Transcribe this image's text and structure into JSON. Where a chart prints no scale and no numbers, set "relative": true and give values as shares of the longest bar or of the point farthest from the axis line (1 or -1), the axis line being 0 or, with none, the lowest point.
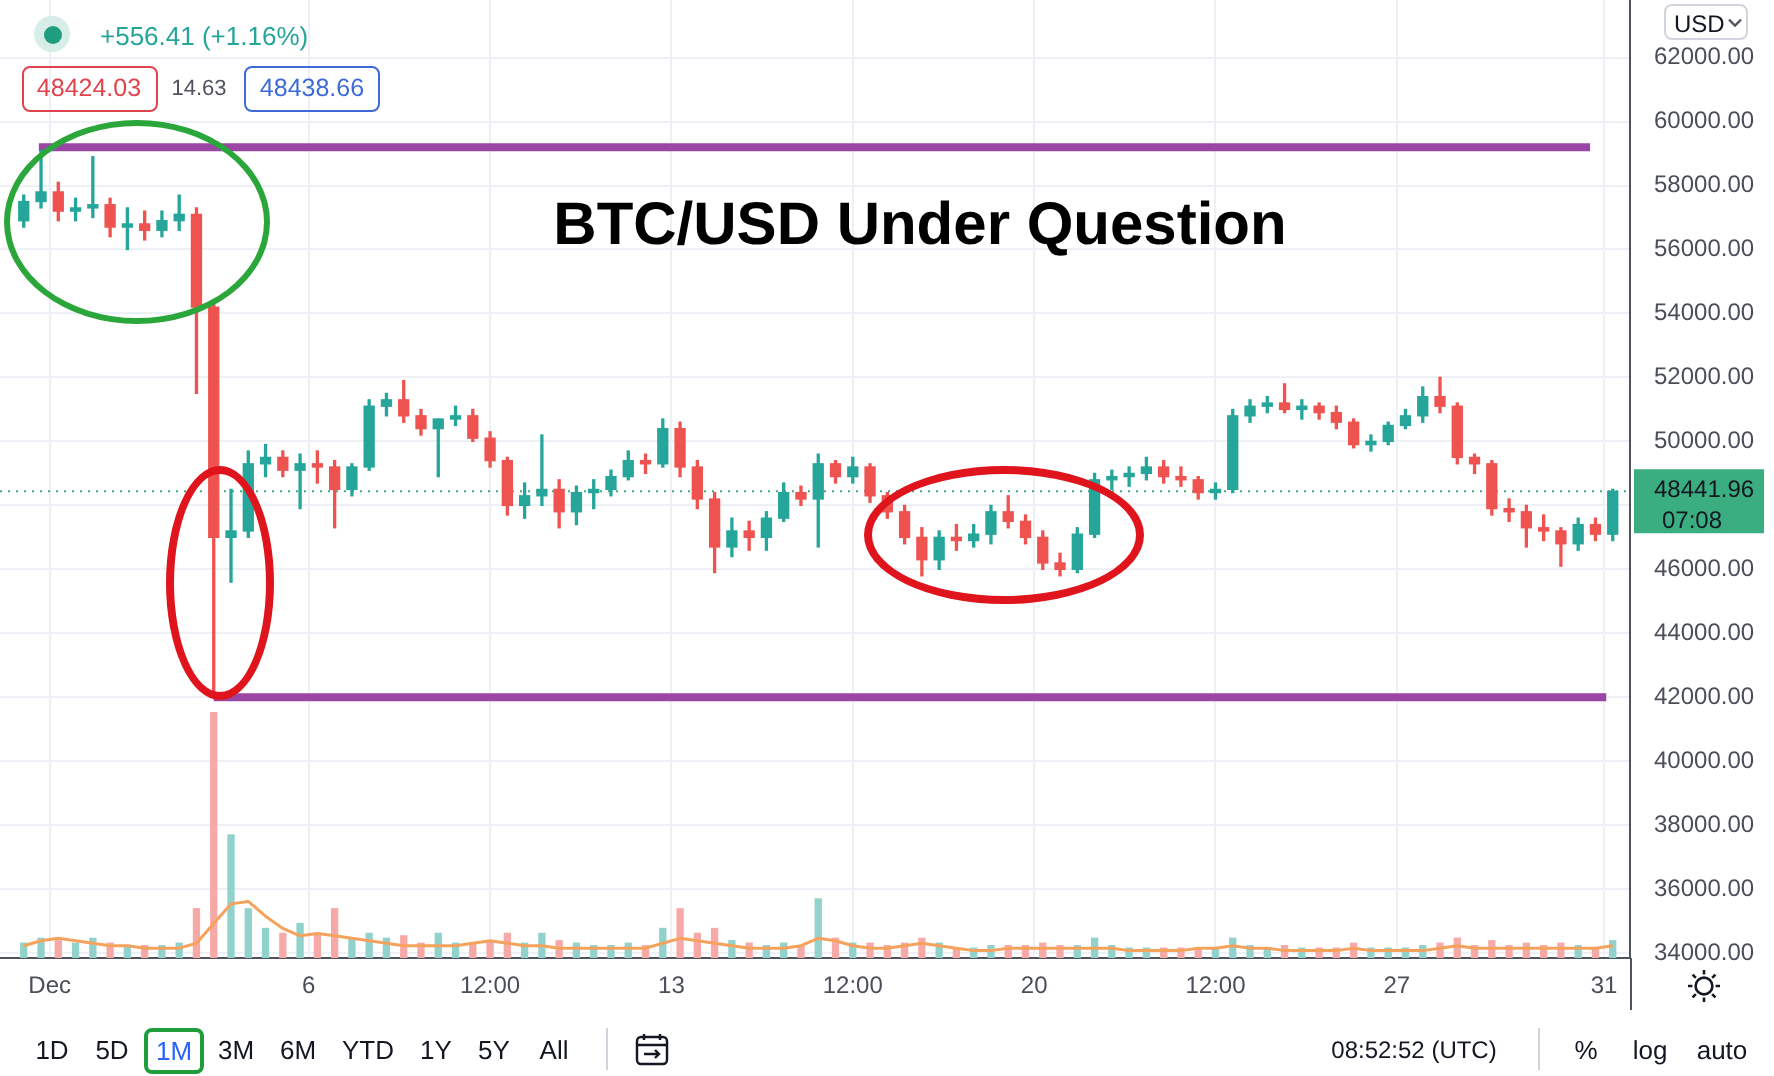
{
  "chart_data": [
    {
      "type": "candlestick",
      "title": "BTC/USD Under Question",
      "series": [
        {
          "x": [
            "--11-30T12:00",
            "--11-30T20:00",
            "--12-01T04:00",
            "--12-01T12:00",
            "--12-01T20:00",
            "--12-02T04:00",
            "--12-02T12:00",
            "--12-02T20:00",
            "--12-03T04:00",
            "--12-03T12:00",
            "--12-03T20:00",
            "--12-04T04:00",
            "--12-04T12:00",
            "--12-04T20:00",
            "--12-05T04:00",
            "--12-05T12:00",
            "--12-05T20:00",
            "--12-06T04:00",
            "--12-06T12:00",
            "--12-06T20:00",
            "--12-07T04:00",
            "--12-07T12:00",
            "--12-07T20:00",
            "--12-08T04:00",
            "--12-08T12:00",
            "--12-08T20:00",
            "--12-09T04:00",
            "--12-09T12:00",
            "--12-09T20:00",
            "--12-10T04:00",
            "--12-10T12:00",
            "--12-10T20:00",
            "--12-11T04:00",
            "--12-11T12:00",
            "--12-11T20:00",
            "--12-12T04:00",
            "--12-12T12:00",
            "--12-12T20:00",
            "--12-13T04:00",
            "--12-13T12:00",
            "--12-13T20:00",
            "--12-14T04:00",
            "--12-14T12:00",
            "--12-14T20:00",
            "--12-15T04:00",
            "--12-15T12:00",
            "--12-15T20:00",
            "--12-16T04:00",
            "--12-16T12:00",
            "--12-16T20:00",
            "--12-17T04:00",
            "--12-17T12:00",
            "--12-17T20:00",
            "--12-18T04:00",
            "--12-18T12:00",
            "--12-18T20:00",
            "--12-19T04:00",
            "--12-19T12:00",
            "--12-19T20:00",
            "--12-20T04:00",
            "--12-20T12:00",
            "--12-20T20:00",
            "--12-21T04:00",
            "--12-21T12:00",
            "--12-21T20:00",
            "--12-22T04:00",
            "--12-22T12:00",
            "--12-22T20:00",
            "--12-23T04:00",
            "--12-23T12:00",
            "--12-23T20:00",
            "--12-24T04:00",
            "--12-24T12:00",
            "--12-24T20:00",
            "--12-25T04:00",
            "--12-25T12:00",
            "--12-25T20:00",
            "--12-26T04:00",
            "--12-26T12:00",
            "--12-26T20:00",
            "--12-27T04:00",
            "--12-27T12:00",
            "--12-27T20:00",
            "--12-28T04:00",
            "--12-28T12:00",
            "--12-28T20:00",
            "--12-29T04:00",
            "--12-29T12:00",
            "--12-29T20:00",
            "--12-30T04:00",
            "--12-30T12:00",
            "--12-30T20:00",
            "--12-31T04:00"
          ],
          "ohlc": [
            [
              56900,
              57700,
              56700,
              57500
            ],
            [
              57500,
              59100,
              57300,
              57800
            ],
            [
              57800,
              58100,
              56900,
              57200
            ],
            [
              57200,
              57600,
              56900,
              57300
            ],
            [
              57300,
              58900,
              57000,
              57400
            ],
            [
              57400,
              57600,
              56400,
              56700
            ],
            [
              56700,
              57300,
              56000,
              56800
            ],
            [
              56800,
              57200,
              56300,
              56600
            ],
            [
              56600,
              57200,
              56400,
              56900
            ],
            [
              56900,
              57700,
              56600,
              57100
            ],
            [
              57100,
              57300,
              51500,
              54200
            ],
            [
              54200,
              54400,
              42000,
              47000
            ],
            [
              47000,
              48500,
              45600,
              47200
            ],
            [
              47200,
              49700,
              47000,
              49300
            ],
            [
              49300,
              49900,
              48900,
              49500
            ],
            [
              49500,
              49700,
              48900,
              49100
            ],
            [
              49100,
              49600,
              47900,
              49300
            ],
            [
              49300,
              49700,
              48700,
              49200
            ],
            [
              49200,
              49400,
              47300,
              48500
            ],
            [
              48500,
              49300,
              48300,
              49200
            ],
            [
              49200,
              51300,
              49100,
              51100
            ],
            [
              51100,
              51500,
              50800,
              51300
            ],
            [
              51300,
              51900,
              50600,
              50800
            ],
            [
              50800,
              51000,
              50200,
              50400
            ],
            [
              50400,
              50700,
              48900,
              50700
            ],
            [
              50700,
              51100,
              50500,
              50800
            ],
            [
              50800,
              51000,
              50000,
              50100
            ],
            [
              50100,
              50300,
              49200,
              49400
            ],
            [
              49400,
              49500,
              47700,
              48000
            ],
            [
              48000,
              48700,
              47600,
              48300
            ],
            [
              48300,
              50200,
              48000,
              48500
            ],
            [
              48500,
              48800,
              47300,
              47800
            ],
            [
              47800,
              48600,
              47400,
              48400
            ],
            [
              48400,
              48800,
              47900,
              48500
            ],
            [
              48500,
              49100,
              48300,
              48900
            ],
            [
              48900,
              49700,
              48800,
              49400
            ],
            [
              49400,
              49600,
              49000,
              49300
            ],
            [
              49300,
              50700,
              49200,
              50400
            ],
            [
              50400,
              50600,
              48900,
              49200
            ],
            [
              49200,
              49400,
              47900,
              48200
            ],
            [
              48200,
              48400,
              45900,
              46700
            ],
            [
              46700,
              47600,
              46400,
              47200
            ],
            [
              47200,
              47500,
              46600,
              47000
            ],
            [
              47000,
              47800,
              46600,
              47600
            ],
            [
              47600,
              48700,
              47500,
              48400
            ],
            [
              48400,
              48600,
              48000,
              48200
            ],
            [
              48200,
              49600,
              46700,
              49300
            ],
            [
              49300,
              49400,
              48700,
              48900
            ],
            [
              48900,
              49500,
              48700,
              49200
            ],
            [
              49200,
              49300,
              48100,
              48300
            ],
            [
              48300,
              48400,
              47600,
              47800
            ],
            [
              47800,
              48000,
              46800,
              47000
            ],
            [
              47000,
              47300,
              45800,
              46300
            ],
            [
              46300,
              47200,
              46000,
              47000
            ],
            [
              47000,
              47400,
              46600,
              46900
            ],
            [
              46900,
              47400,
              46700,
              47100
            ],
            [
              47100,
              48000,
              46800,
              47800
            ],
            [
              47800,
              48300,
              47300,
              47500
            ],
            [
              47500,
              47700,
              46800,
              47000
            ],
            [
              47000,
              47200,
              46000,
              46200
            ],
            [
              46200,
              46500,
              45800,
              46000
            ],
            [
              46000,
              47300,
              45900,
              47100
            ],
            [
              47100,
              49000,
              47000,
              48800
            ],
            [
              48800,
              49100,
              48500,
              48900
            ],
            [
              48900,
              49200,
              48600,
              49000
            ],
            [
              49000,
              49500,
              48800,
              49200
            ],
            [
              49200,
              49400,
              48700,
              48900
            ],
            [
              48900,
              49200,
              48600,
              48800
            ],
            [
              48800,
              48900,
              48200,
              48400
            ],
            [
              48400,
              48700,
              48200,
              48500
            ],
            [
              48500,
              51000,
              48400,
              50800
            ],
            [
              50800,
              51300,
              50600,
              51100
            ],
            [
              51100,
              51400,
              50900,
              51200
            ],
            [
              51200,
              51800,
              50900,
              51000
            ],
            [
              51000,
              51300,
              50700,
              51100
            ],
            [
              51100,
              51200,
              50700,
              50900
            ],
            [
              50900,
              51100,
              50400,
              50600
            ],
            [
              50600,
              50700,
              49800,
              49900
            ],
            [
              49900,
              50200,
              49700,
              50000
            ],
            [
              50000,
              50600,
              49900,
              50500
            ],
            [
              50500,
              51000,
              50400,
              50800
            ],
            [
              50800,
              51700,
              50600,
              51400
            ],
            [
              51400,
              52000,
              50900,
              51100
            ],
            [
              51100,
              51200,
              49300,
              49500
            ],
            [
              49500,
              49600,
              49000,
              49300
            ],
            [
              49300,
              49400,
              47700,
              47900
            ],
            [
              47900,
              48200,
              47500,
              47800
            ],
            [
              47800,
              48000,
              46700,
              47300
            ],
            [
              47300,
              47700,
              46900,
              47200
            ],
            [
              47200,
              47300,
              46100,
              46800
            ],
            [
              46800,
              47600,
              46600,
              47400
            ],
            [
              47400,
              47600,
              46900,
              47100
            ],
            [
              47100,
              48500,
              46900,
              48440
            ]
          ],
          "colors": [
            "#26a69a",
            "#26a69a",
            "#ef5350",
            "#26a69a",
            "#26a69a",
            "#ef5350",
            "#26a69a",
            "#ef5350",
            "#26a69a",
            "#26a69a",
            "#ef5350",
            "#ef5350",
            "#26a69a",
            "#26a69a",
            "#26a69a",
            "#ef5350",
            "#26a69a",
            "#ef5350",
            "#ef5350",
            "#26a69a",
            "#26a69a",
            "#26a69a",
            "#ef5350",
            "#ef5350",
            "#26a69a",
            "#26a69a",
            "#ef5350",
            "#ef5350",
            "#ef5350",
            "#26a69a",
            "#26a69a",
            "#ef5350",
            "#26a69a",
            "#26a69a",
            "#26a69a",
            "#26a69a",
            "#ef5350",
            "#26a69a",
            "#ef5350",
            "#ef5350",
            "#ef5350",
            "#26a69a",
            "#ef5350",
            "#26a69a",
            "#26a69a",
            "#ef5350",
            "#26a69a",
            "#ef5350",
            "#26a69a",
            "#ef5350",
            "#ef5350",
            "#ef5350",
            "#ef5350",
            "#26a69a",
            "#ef5350",
            "#26a69a",
            "#26a69a",
            "#ef5350",
            "#ef5350",
            "#ef5350",
            "#ef5350",
            "#26a69a",
            "#26a69a",
            "#26a69a",
            "#26a69a",
            "#26a69a",
            "#ef5350",
            "#ef5350",
            "#ef5350",
            "#26a69a",
            "#26a69a",
            "#26a69a",
            "#26a69a",
            "#ef5350",
            "#26a69a",
            "#ef5350",
            "#ef5350",
            "#ef5350",
            "#26a69a",
            "#26a69a",
            "#26a69a",
            "#26a69a",
            "#ef5350",
            "#ef5350",
            "#ef5350",
            "#ef5350",
            "#ef5350",
            "#ef5350",
            "#ef5350",
            "#ef5350",
            "#26a69a",
            "#ef5350",
            "#26a69a"
          ]
        },
        {
          "type": "line",
          "x": [
            "--11-30T19:00",
            "--12-30T17:30"
          ],
          "values": [
            59200,
            59200
          ],
          "color": "#9b45a5"
        },
        {
          "type": "line",
          "x": [
            "--12-04T04:00",
            "--12-31T01:00"
          ],
          "values": [
            42000,
            42000
          ],
          "color": "#9b45a5"
        }
      ],
      "xlim": [
        "--11-30T01:00",
        "--12-31T12:00"
      ],
      "ylim": [
        33850,
        63800
      ],
      "xticks": [
        {
          "value": "--12-01",
          "label": "Dec"
        },
        {
          "value": "--12-06",
          "label": "6"
        },
        {
          "value": "--12-09T12:00",
          "label": "12:00"
        },
        {
          "value": "--12-13",
          "label": "13"
        },
        {
          "value": "--12-16T12:00",
          "label": "12:00"
        },
        {
          "value": "--12-20",
          "label": "20"
        },
        {
          "value": "--12-23T12:00",
          "label": "12:00"
        },
        {
          "value": "--12-27",
          "label": "27"
        },
        {
          "value": "--12-31",
          "label": "31"
        }
      ],
      "yticks": [
        {
          "value": 34000,
          "label": "34000.00"
        },
        {
          "value": 36000,
          "label": "36000.00"
        },
        {
          "value": 38000,
          "label": "38000.00"
        },
        {
          "value": 40000,
          "label": "40000.00"
        },
        {
          "value": 42000,
          "label": "42000.00"
        },
        {
          "value": 44000,
          "label": "44000.00"
        },
        {
          "value": 46000,
          "label": "46000.00"
        },
        {
          "value": 48000,
          "label": null
        },
        {
          "value": 50000,
          "label": "50000.00"
        },
        {
          "value": 52000,
          "label": "52000.00"
        },
        {
          "value": 54000,
          "label": "54000.00"
        },
        {
          "value": 56000,
          "label": "56000.00"
        },
        {
          "value": 58000,
          "label": "58000.00"
        },
        {
          "value": 60000,
          "label": "60000.00"
        },
        {
          "value": 62000,
          "label": "62000.00"
        }
      ],
      "grid": true,
      "ref_lines": [
        {
          "axis": "y",
          "value": 48441.96,
          "label": "48441.96",
          "color": "#3aae80",
          "line_style": "dotted"
        }
      ],
      "annotations": [
        "+556.41 (+1.16%)",
        "48424.03",
        "14.63",
        "48438.66",
        "USD",
        "07:08",
        "1D",
        "5D",
        "1M",
        "3M",
        "6M",
        "YTD",
        "1Y",
        "5Y",
        "All",
        "08:52:52 (UTC)",
        "%",
        "log",
        "auto"
      ]
    },
    {
      "type": "bar",
      "relative": true,
      "tick_labels": false,
      "x": [
        "--11-30T12:00",
        "--11-30T20:00",
        "--12-01T04:00",
        "--12-01T12:00",
        "--12-01T20:00",
        "--12-02T04:00",
        "--12-02T12:00",
        "--12-02T20:00",
        "--12-03T04:00",
        "--12-03T12:00",
        "--12-03T20:00",
        "--12-04T04:00",
        "--12-04T12:00",
        "--12-04T20:00",
        "--12-05T04:00",
        "--12-05T12:00",
        "--12-05T20:00",
        "--12-06T04:00",
        "--12-06T12:00",
        "--12-06T20:00",
        "--12-07T04:00",
        "--12-07T12:00",
        "--12-07T20:00",
        "--12-08T04:00",
        "--12-08T12:00",
        "--12-08T20:00",
        "--12-09T04:00",
        "--12-09T12:00",
        "--12-09T20:00",
        "--12-10T04:00",
        "--12-10T12:00",
        "--12-10T20:00",
        "--12-11T04:00",
        "--12-11T12:00",
        "--12-11T20:00",
        "--12-12T04:00",
        "--12-12T12:00",
        "--12-12T20:00",
        "--12-13T04:00",
        "--12-13T12:00",
        "--12-13T20:00",
        "--12-14T04:00",
        "--12-14T12:00",
        "--12-14T20:00",
        "--12-15T04:00",
        "--12-15T12:00",
        "--12-15T20:00",
        "--12-16T04:00",
        "--12-16T12:00",
        "--12-16T20:00",
        "--12-17T04:00",
        "--12-17T12:00",
        "--12-17T20:00",
        "--12-18T04:00",
        "--12-18T12:00",
        "--12-18T20:00",
        "--12-19T04:00",
        "--12-19T12:00",
        "--12-19T20:00",
        "--12-20T04:00",
        "--12-20T12:00",
        "--12-20T20:00",
        "--12-21T04:00",
        "--12-21T12:00",
        "--12-21T20:00",
        "--12-22T04:00",
        "--12-22T12:00",
        "--12-22T20:00",
        "--12-23T04:00",
        "--12-23T12:00",
        "--12-23T20:00",
        "--12-24T04:00",
        "--12-24T12:00",
        "--12-24T20:00",
        "--12-25T04:00",
        "--12-25T12:00",
        "--12-25T20:00",
        "--12-26T04:00",
        "--12-26T12:00",
        "--12-26T20:00",
        "--12-27T04:00",
        "--12-27T12:00",
        "--12-27T20:00",
        "--12-28T04:00",
        "--12-28T12:00",
        "--12-28T20:00",
        "--12-29T04:00",
        "--12-29T12:00",
        "--12-29T20:00",
        "--12-30T04:00",
        "--12-30T12:00",
        "--12-30T20:00",
        "--12-31T04:00"
      ],
      "xlim": [
        "--11-30T01:00",
        "--12-31T12:00"
      ],
      "xticks": [
        {
          "value": "--12-01",
          "label": "Dec"
        },
        {
          "value": "--12-06",
          "label": "6"
        },
        {
          "value": "--12-09T12:00",
          "label": "12:00"
        },
        {
          "value": "--12-13",
          "label": "13"
        },
        {
          "value": "--12-16T12:00",
          "label": "12:00"
        },
        {
          "value": "--12-20",
          "label": "20"
        },
        {
          "value": "--12-23T12:00",
          "label": "12:00"
        },
        {
          "value": "--12-27",
          "label": "27"
        },
        {
          "value": "--12-31",
          "label": "31"
        }
      ],
      "series": [
        {
          "values": [
            0.06,
            0.08,
            0.07,
            0.06,
            0.08,
            0.06,
            0.05,
            0.05,
            0.05,
            0.06,
            0.2,
            1,
            0.5,
            0.2,
            0.12,
            0.1,
            0.14,
            0.1,
            0.2,
            0.08,
            0.1,
            0.08,
            0.09,
            0.06,
            0.1,
            0.06,
            0.06,
            0.07,
            0.1,
            0.06,
            0.1,
            0.07,
            0.06,
            0.05,
            0.05,
            0.06,
            0.05,
            0.12,
            0.2,
            0.1,
            0.12,
            0.07,
            0.06,
            0.05,
            0.06,
            0.05,
            0.24,
            0.08,
            0.06,
            0.06,
            0.05,
            0.06,
            0.08,
            0.06,
            0.04,
            0.04,
            0.05,
            0.05,
            0.05,
            0.06,
            0.05,
            0.05,
            0.08,
            0.05,
            0.04,
            0.04,
            0.04,
            0.04,
            0.04,
            0.04,
            0.08,
            0.05,
            0.04,
            0.05,
            0.04,
            0.04,
            0.04,
            0.06,
            0.04,
            0.04,
            0.04,
            0.05,
            0.06,
            0.08,
            0.05,
            0.07,
            0.05,
            0.06,
            0.05,
            0.06,
            0.05,
            0.04,
            0.07
          ],
          "colors": [
            "#92d2cc",
            "#92d2cc",
            "#f7a9a7",
            "#92d2cc",
            "#92d2cc",
            "#f7a9a7",
            "#92d2cc",
            "#f7a9a7",
            "#92d2cc",
            "#92d2cc",
            "#f7a9a7",
            "#f7a9a7",
            "#92d2cc",
            "#92d2cc",
            "#92d2cc",
            "#f7a9a7",
            "#92d2cc",
            "#f7a9a7",
            "#f7a9a7",
            "#92d2cc",
            "#92d2cc",
            "#92d2cc",
            "#f7a9a7",
            "#f7a9a7",
            "#92d2cc",
            "#92d2cc",
            "#f7a9a7",
            "#f7a9a7",
            "#f7a9a7",
            "#92d2cc",
            "#92d2cc",
            "#f7a9a7",
            "#92d2cc",
            "#92d2cc",
            "#92d2cc",
            "#92d2cc",
            "#f7a9a7",
            "#92d2cc",
            "#f7a9a7",
            "#f7a9a7",
            "#f7a9a7",
            "#92d2cc",
            "#f7a9a7",
            "#92d2cc",
            "#92d2cc",
            "#f7a9a7",
            "#92d2cc",
            "#f7a9a7",
            "#92d2cc",
            "#f7a9a7",
            "#f7a9a7",
            "#f7a9a7",
            "#f7a9a7",
            "#92d2cc",
            "#f7a9a7",
            "#92d2cc",
            "#92d2cc",
            "#f7a9a7",
            "#f7a9a7",
            "#f7a9a7",
            "#f7a9a7",
            "#92d2cc",
            "#92d2cc",
            "#92d2cc",
            "#92d2cc",
            "#92d2cc",
            "#f7a9a7",
            "#f7a9a7",
            "#f7a9a7",
            "#92d2cc",
            "#92d2cc",
            "#92d2cc",
            "#92d2cc",
            "#f7a9a7",
            "#92d2cc",
            "#f7a9a7",
            "#f7a9a7",
            "#f7a9a7",
            "#92d2cc",
            "#92d2cc",
            "#92d2cc",
            "#92d2cc",
            "#f7a9a7",
            "#f7a9a7",
            "#f7a9a7",
            "#f7a9a7",
            "#f7a9a7",
            "#f7a9a7",
            "#f7a9a7",
            "#f7a9a7",
            "#92d2cc",
            "#f7a9a7",
            "#92d2cc"
          ]
        },
        {
          "type": "line",
          "color": "#f5a25d",
          "values": [
            0.05,
            0.07,
            0.08,
            0.07,
            0.06,
            0.05,
            0.05,
            0.04,
            0.04,
            0.04,
            0.06,
            0.14,
            0.22,
            0.23,
            0.17,
            0.12,
            0.09,
            0.1,
            0.09,
            0.08,
            0.07,
            0.06,
            0.05,
            0.05,
            0.05,
            0.05,
            0.06,
            0.07,
            0.06,
            0.05,
            0.05,
            0.04,
            0.04,
            0.04,
            0.04,
            0.04,
            0.04,
            0.06,
            0.08,
            0.07,
            0.06,
            0.05,
            0.04,
            0.04,
            0.04,
            0.05,
            0.08,
            0.07,
            0.05,
            0.04,
            0.04,
            0.05,
            0.06,
            0.05,
            0.04,
            0.03,
            0.03,
            0.04,
            0.04,
            0.04,
            0.04,
            0.04,
            0.04,
            0.04,
            0.03,
            0.03,
            0.03,
            0.03,
            0.04,
            0.04,
            0.05,
            0.04,
            0.04,
            0.03,
            0.03,
            0.03,
            0.03,
            0.04,
            0.03,
            0.03,
            0.03,
            0.03,
            0.04,
            0.05,
            0.04,
            0.04,
            0.04,
            0.04,
            0.04,
            0.04,
            0.04,
            0.04,
            0.05
          ]
        }
      ]
    }
  ]
}
